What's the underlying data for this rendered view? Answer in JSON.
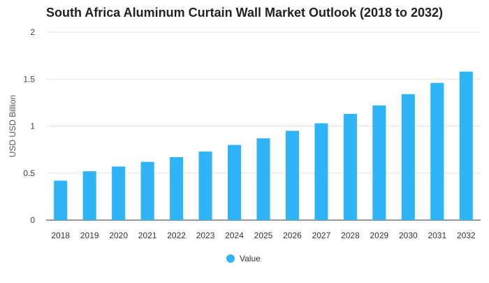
{
  "chart_data": {
    "type": "bar",
    "title": "South Africa Aluminum Curtain Wall Market Outlook (2018 to 2032)",
    "xlabel": "",
    "ylabel": "USD USD Billion",
    "ylim": [
      0,
      2
    ],
    "yticks": [
      0,
      0.5,
      1,
      1.5,
      2
    ],
    "ytick_labels": [
      "0",
      "0.5",
      "1",
      "1.5",
      "2"
    ],
    "grid": true,
    "legend_position": "bottom-center",
    "categories": [
      "2018",
      "2019",
      "2020",
      "2021",
      "2022",
      "2023",
      "2024",
      "2025",
      "2026",
      "2027",
      "2028",
      "2029",
      "2030",
      "2031",
      "2032"
    ],
    "series": [
      {
        "name": "Value",
        "color": "#2eb4f7",
        "values": [
          0.42,
          0.52,
          0.57,
          0.62,
          0.67,
          0.73,
          0.8,
          0.87,
          0.95,
          1.03,
          1.13,
          1.22,
          1.34,
          1.46,
          1.58
        ]
      }
    ]
  }
}
